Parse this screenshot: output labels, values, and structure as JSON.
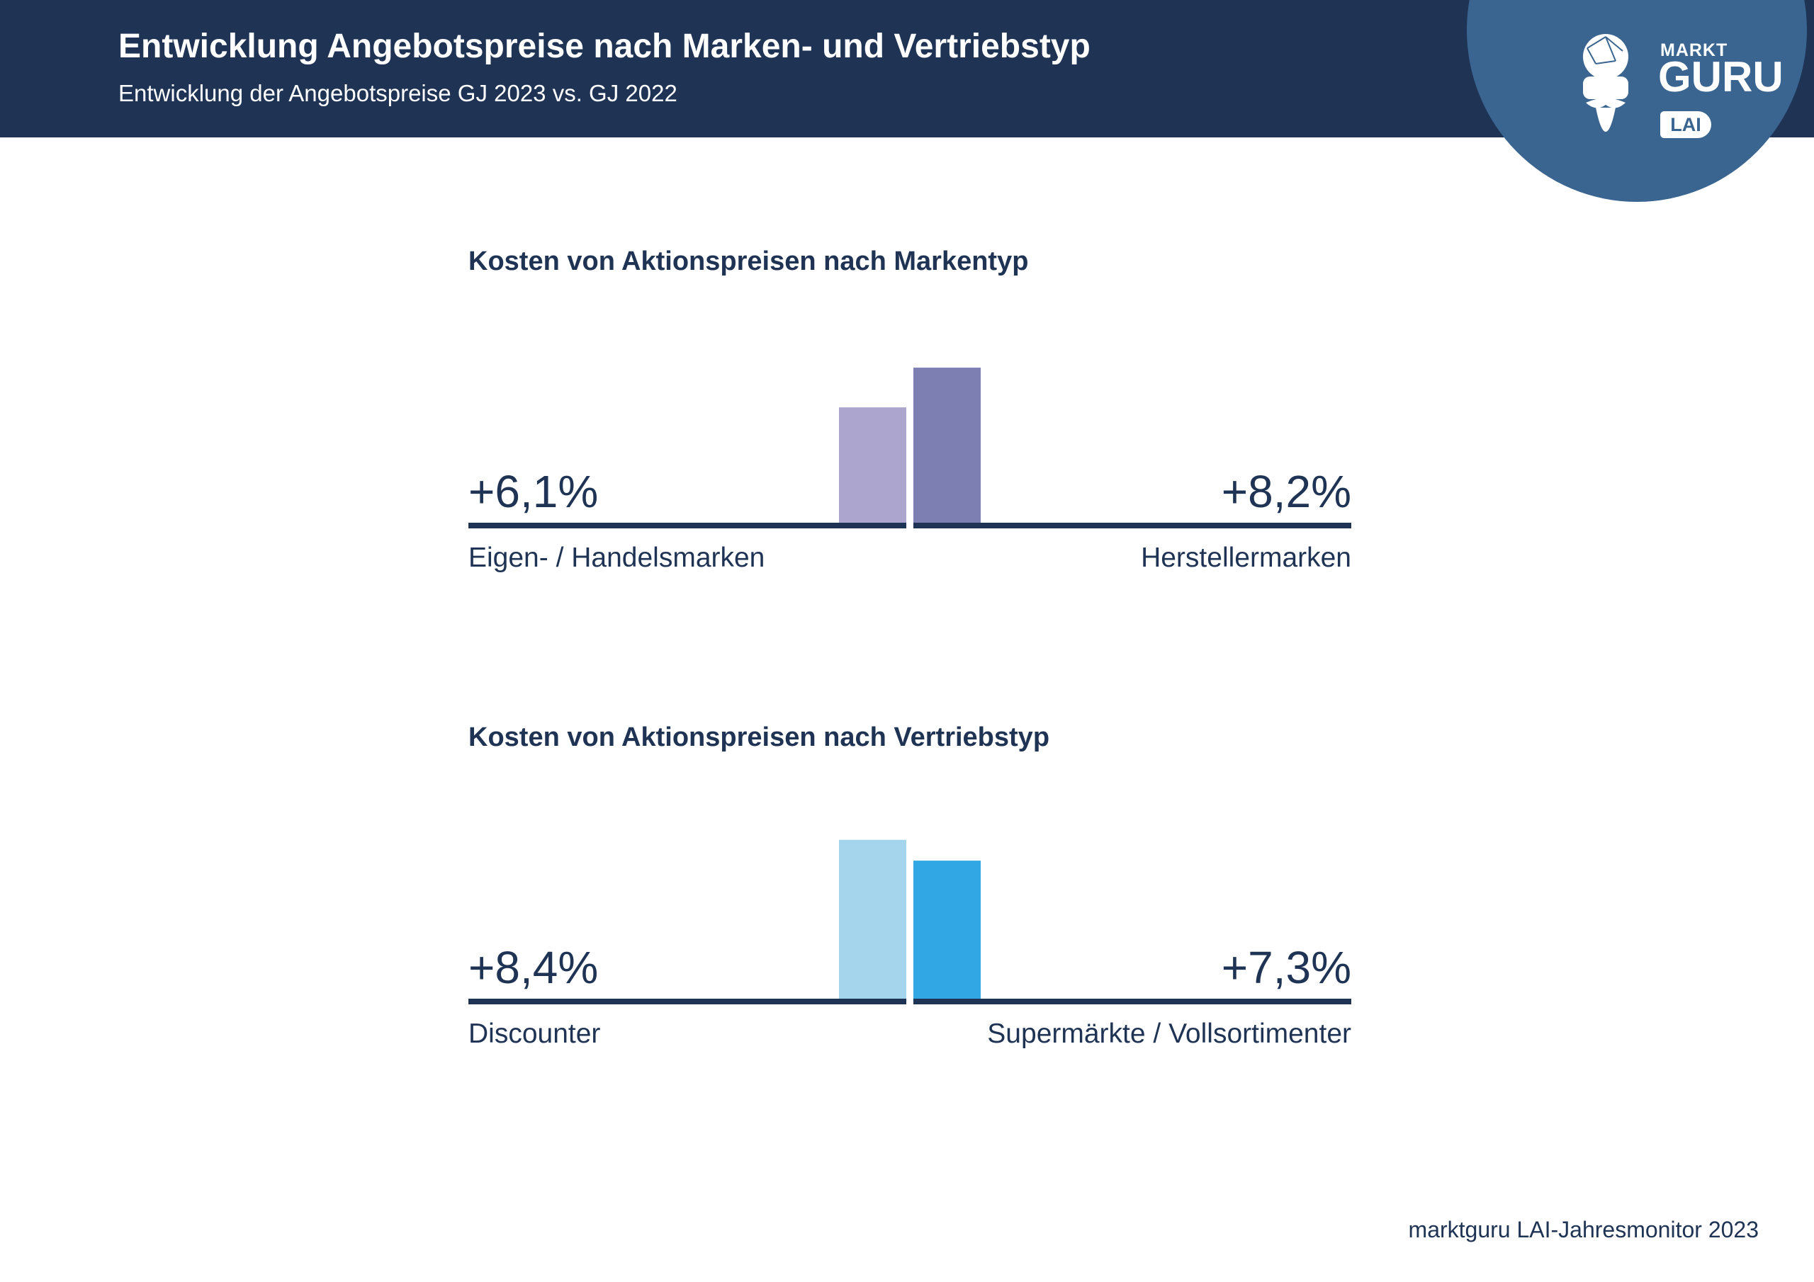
{
  "header": {
    "title": "Entwicklung Angebotspreise nach Marken- und Vertriebstyp",
    "subtitle": "Entwicklung der Angebotspreise GJ 2023 vs. GJ 2022"
  },
  "logo": {
    "icon": "markt-guru-mascot-icon",
    "markt": "MARKT",
    "guru": "GURU",
    "lai": "LAI"
  },
  "source": "marktguru LAI-Jahresmonitor 2023",
  "chart_data": [
    {
      "type": "bar",
      "title": "Kosten von Aktionspreisen nach Markentyp",
      "categories": [
        "Eigen- / Handelsmarken",
        "Herstellermarken"
      ],
      "values": [
        6.1,
        8.2
      ],
      "value_labels": [
        "+6,1%",
        "+8,2%"
      ],
      "unit": "%",
      "ylim": [
        0,
        10.3
      ],
      "colors": [
        "#aca6ce",
        "#7d7eb1"
      ],
      "grid": false,
      "legend": "none"
    },
    {
      "type": "bar",
      "title": "Kosten von Aktionspreisen nach Vertriebstyp",
      "categories": [
        "Discounter",
        "Supermärkte / Vollsortimenter"
      ],
      "values": [
        8.4,
        7.3
      ],
      "value_labels": [
        "+8,4%",
        "+7,3%"
      ],
      "unit": "%",
      "ylim": [
        0,
        10.3
      ],
      "colors": [
        "#a4d5ec",
        "#31a8e3"
      ],
      "grid": false,
      "legend": "none"
    }
  ]
}
